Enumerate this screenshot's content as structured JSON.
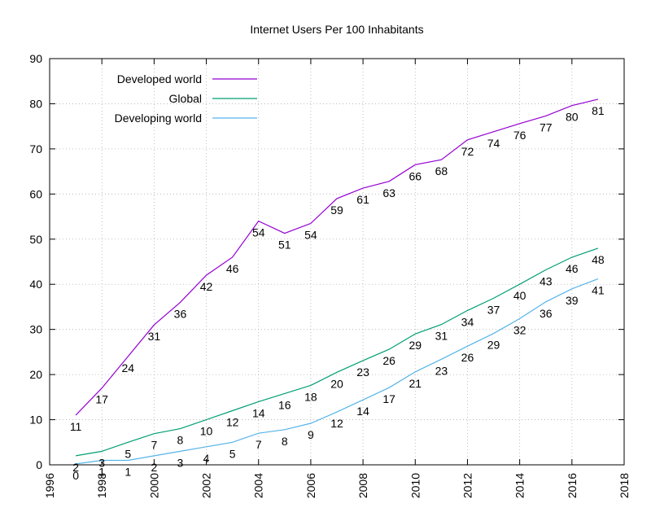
{
  "chart_data": {
    "type": "line",
    "title": "Internet Users Per 100 Inhabitants",
    "xlabel": "",
    "ylabel": "",
    "xlim": [
      1996,
      2018
    ],
    "ylim": [
      0,
      90
    ],
    "x_ticks": [
      1996,
      1998,
      2000,
      2002,
      2004,
      2006,
      2008,
      2010,
      2012,
      2014,
      2016,
      2018
    ],
    "y_ticks": [
      0,
      10,
      20,
      30,
      40,
      50,
      60,
      70,
      80,
      90
    ],
    "grid": true,
    "legend": "top-left",
    "x": [
      1997,
      1998,
      1999,
      2000,
      2001,
      2002,
      2003,
      2004,
      2005,
      2006,
      2007,
      2008,
      2009,
      2010,
      2011,
      2012,
      2013,
      2014,
      2015,
      2016,
      2017
    ],
    "series": [
      {
        "name": "Developed world",
        "color": "#9400d3",
        "values": [
          11,
          17,
          24,
          31,
          36,
          42,
          46,
          54,
          51,
          54,
          59,
          61,
          63,
          66,
          68,
          72,
          74,
          76,
          77,
          80,
          81
        ],
        "plot_values": [
          11,
          17,
          24,
          31,
          36,
          42,
          46,
          54,
          51.3,
          53.5,
          59,
          61.3,
          62.8,
          66.5,
          67.6,
          72,
          73.8,
          75.6,
          77.3,
          79.6,
          81
        ]
      },
      {
        "name": "Global",
        "color": "#009e73",
        "values": [
          2,
          3,
          5,
          7,
          8,
          10,
          12,
          14,
          16,
          18,
          20,
          23,
          26,
          29,
          31,
          34,
          37,
          40,
          43,
          46,
          48
        ],
        "plot_values": [
          2,
          3,
          5,
          6.9,
          8,
          10,
          12,
          14,
          15.8,
          17.6,
          20.5,
          23.1,
          25.6,
          29,
          31.1,
          34.2,
          36.9,
          40,
          43.2,
          46,
          48
        ]
      },
      {
        "name": "Developing world",
        "color": "#56b4e9",
        "values": [
          0,
          1,
          1,
          2,
          3,
          4,
          5,
          7,
          8,
          9,
          12,
          14,
          17,
          21,
          23,
          26,
          29,
          32,
          36,
          39,
          41
        ],
        "plot_values": [
          0.2,
          1,
          1,
          2,
          3,
          4,
          5,
          7,
          7.8,
          9.2,
          11.7,
          14.4,
          17.1,
          20.6,
          23.4,
          26.3,
          29.1,
          32.4,
          36.1,
          39,
          41.2
        ]
      }
    ]
  }
}
